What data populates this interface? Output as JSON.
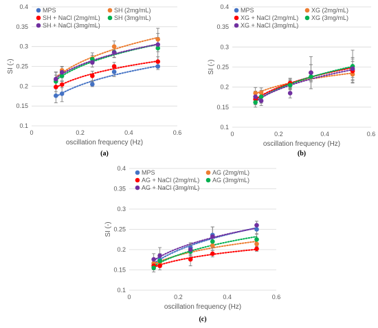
{
  "chart_data": [
    {
      "type": "scatter",
      "panel_label": "(a)",
      "xlabel": "oscillation frequency (Hz)",
      "ylabel": "SI (-)",
      "xlim": [
        0,
        0.6
      ],
      "ylim": [
        0.1,
        0.4
      ],
      "xticks": [
        "0",
        "0.2",
        "0.4",
        "0.6"
      ],
      "yticks": [
        "0.1",
        "0.15",
        "0.2",
        "0.25",
        "0.3",
        "0.35",
        "0.4"
      ],
      "x": [
        0.1,
        0.125,
        0.25,
        0.34,
        0.52
      ],
      "legend_position": "top-left",
      "trendlines": "dotted power fit",
      "series": [
        {
          "name": "MPS",
          "color": "#4472C4",
          "values": [
            0.176,
            0.181,
            0.205,
            0.236,
            0.25
          ],
          "err": [
            0.018,
            0.02,
            0.006,
            0.012,
            0.008
          ]
        },
        {
          "name": "SH (2mg/mL)",
          "color": "#ED7D31",
          "values": [
            0.217,
            0.24,
            0.27,
            0.3,
            0.318
          ],
          "err": [
            0.018,
            0.01,
            0.014,
            0.014,
            0.015
          ]
        },
        {
          "name": "SH + NaCl (2mg/mL)",
          "color": "#FF0000",
          "values": [
            0.198,
            0.204,
            0.226,
            0.25,
            0.262
          ],
          "err": [
            0.012,
            0.008,
            0.012,
            0.01,
            0.012
          ]
        },
        {
          "name": "SH (3mg/mL)",
          "color": "#00B050",
          "values": [
            0.212,
            0.226,
            0.268,
            0.286,
            0.296
          ],
          "err": [
            0.016,
            0.012,
            0.01,
            0.014,
            0.05
          ]
        },
        {
          "name": "SH + NaCl (3mg/mL)",
          "color": "#7030A0",
          "values": [
            0.218,
            0.235,
            0.26,
            0.285,
            0.305
          ],
          "err": [
            0.018,
            0.014,
            0.012,
            0.012,
            0.018
          ]
        }
      ]
    },
    {
      "type": "scatter",
      "panel_label": "(b)",
      "xlabel": "oscillation frequency (Hz)",
      "ylabel": "SI (-)",
      "xlim": [
        0,
        0.6
      ],
      "ylim": [
        0.1,
        0.4
      ],
      "xticks": [
        "0",
        "0.2",
        "0.4",
        "0.6"
      ],
      "yticks": [
        "0.1",
        "0.15",
        "0.2",
        "0.25",
        "0.3",
        "0.35",
        "0.4"
      ],
      "x": [
        0.1,
        0.125,
        0.25,
        0.34,
        0.52
      ],
      "legend_position": "top-left",
      "trendlines": "dotted power fit",
      "series": [
        {
          "name": "MPS",
          "color": "#4472C4",
          "values": [
            0.17,
            0.176,
            0.205,
            0.236,
            0.244
          ],
          "err": [
            0.012,
            0.012,
            0.01,
            0.02,
            0.02
          ]
        },
        {
          "name": "XG (2mg/mL)",
          "color": "#ED7D31",
          "values": [
            0.185,
            0.186,
            0.21,
            0.225,
            0.232
          ],
          "err": [
            0.014,
            0.012,
            0.01,
            0.012,
            0.015
          ]
        },
        {
          "name": "XG + NaCl (2mg/mL)",
          "color": "#FF0000",
          "values": [
            0.17,
            0.176,
            0.21,
            0.236,
            0.24
          ],
          "err": [
            0.014,
            0.012,
            0.012,
            0.04,
            0.03
          ]
        },
        {
          "name": "XG (3mg/mL)",
          "color": "#00B050",
          "values": [
            0.162,
            0.176,
            0.205,
            0.226,
            0.252
          ],
          "err": [
            0.012,
            0.016,
            0.012,
            0.03,
            0.04
          ]
        },
        {
          "name": "XG + NaCl (3mg/mL)",
          "color": "#7030A0",
          "values": [
            0.176,
            0.166,
            0.185,
            0.236,
            0.246
          ],
          "err": [
            0.014,
            0.012,
            0.012,
            0.02,
            0.028
          ]
        }
      ]
    },
    {
      "type": "scatter",
      "panel_label": "(c)",
      "xlabel": "oscillation frequency (Hz)",
      "ylabel": "SI (-)",
      "xlim": [
        0,
        0.6
      ],
      "ylim": [
        0.1,
        0.4
      ],
      "xticks": [
        "0",
        "0.2",
        "0.4",
        "0.6"
      ],
      "yticks": [
        "0.1",
        "0.15",
        "0.2",
        "0.25",
        "0.3",
        "0.35",
        "0.4"
      ],
      "x": [
        0.1,
        0.125,
        0.25,
        0.34,
        0.52
      ],
      "legend_position": "top-left",
      "trendlines": "dotted power fit",
      "series": [
        {
          "name": "MPS",
          "color": "#4472C4",
          "values": [
            0.166,
            0.176,
            0.205,
            0.236,
            0.25
          ],
          "err": [
            0.012,
            0.014,
            0.012,
            0.02,
            0.012
          ]
        },
        {
          "name": "AG (2mg/mL)",
          "color": "#ED7D31",
          "values": [
            0.166,
            0.166,
            0.198,
            0.21,
            0.214
          ],
          "err": [
            0.01,
            0.01,
            0.012,
            0.012,
            0.01
          ]
        },
        {
          "name": "AG + NaCl (2mg/mL)",
          "color": "#FF0000",
          "values": [
            0.16,
            0.16,
            0.176,
            0.19,
            0.202
          ],
          "err": [
            0.01,
            0.01,
            0.016,
            0.008,
            0.006
          ]
        },
        {
          "name": "AG (3mg/mL)",
          "color": "#00B050",
          "values": [
            0.155,
            0.172,
            0.195,
            0.22,
            0.225
          ],
          "err": [
            0.01,
            0.012,
            0.012,
            0.016,
            0.014
          ]
        },
        {
          "name": "AG + NaCl (3mg/mL)",
          "color": "#7030A0",
          "values": [
            0.176,
            0.185,
            0.2,
            0.232,
            0.26
          ],
          "err": [
            0.014,
            0.02,
            0.012,
            0.024,
            0.01
          ]
        }
      ]
    }
  ]
}
